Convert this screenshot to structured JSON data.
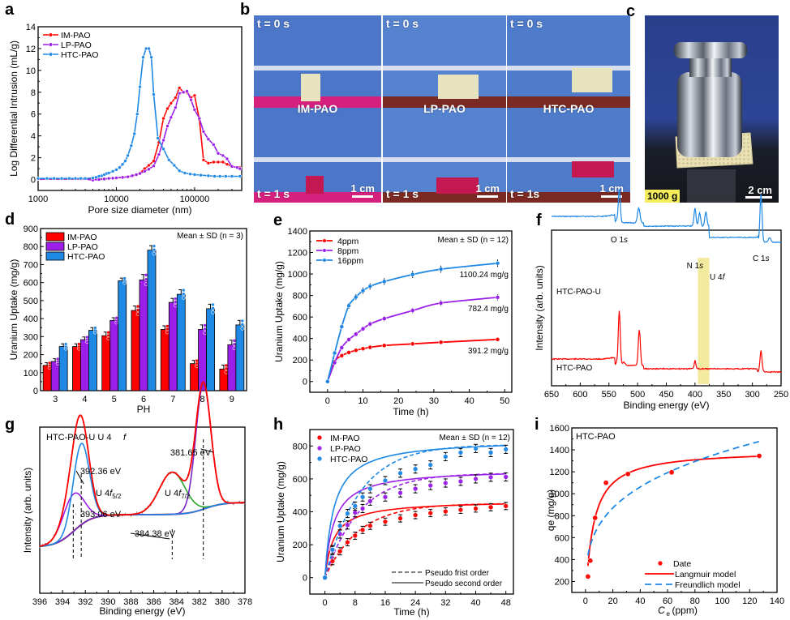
{
  "panels": {
    "a": "a",
    "b": "b",
    "c": "c",
    "d": "d",
    "e": "e",
    "f": "f",
    "g": "g",
    "h": "h",
    "i": "i"
  },
  "colors": {
    "red": "#ff0000",
    "purple": "#9b1fe8",
    "blue": "#1e88e5",
    "green": "#2aa52a",
    "darkred": "#8b1a1a",
    "highlight": "#f3eaa0"
  },
  "photo_b": {
    "columns": [
      {
        "sample": "IM-PAO",
        "t0": "t = 0 s",
        "t1": "t = 1 s",
        "scale": "1 cm"
      },
      {
        "sample": "LP-PAO",
        "t0": "t = 0 s",
        "t1": "t = 1 s",
        "scale": "1 cm"
      },
      {
        "sample": "HTC-PAO",
        "t0": "t = 0 s",
        "t1": "t = 1s",
        "scale": "1 cm"
      }
    ]
  },
  "photo_c": {
    "weight_label": "1000 g",
    "scale": "2 cm"
  },
  "chart_data": [
    {
      "id": "a",
      "type": "line",
      "xscale": "log",
      "xlabel": "Pore size diameter (nm)",
      "ylabel": "Log Differential Intrusion (mL/g)",
      "xlim": [
        1000,
        400000
      ],
      "ylim": [
        -1,
        14
      ],
      "xticks": [
        1000,
        10000,
        100000
      ],
      "xtick_labels": [
        "1000",
        "10000",
        "100000"
      ],
      "yticks": [
        0,
        2,
        4,
        6,
        8,
        10,
        12,
        14
      ],
      "legend": "top-left",
      "series": [
        {
          "name": "IM-PAO",
          "color": "red",
          "x": [
            1000,
            1300,
            1600,
            2000,
            2500,
            3000,
            3500,
            4000,
            5000,
            6000,
            7000,
            8000,
            9000,
            10000,
            12000,
            14000,
            16000,
            18000,
            20000,
            23000,
            26000,
            30000,
            35000,
            40000,
            45000,
            50000,
            57000,
            64000,
            72000,
            80000,
            90000,
            100000,
            115000,
            130000,
            150000,
            175000,
            200000,
            230000,
            260000,
            300000,
            350000,
            380000
          ],
          "y": [
            0.05,
            0.05,
            0.05,
            0.05,
            0.05,
            0.05,
            0.05,
            0.05,
            0.05,
            0.05,
            0.08,
            0.1,
            0.12,
            0.15,
            0.2,
            0.25,
            0.35,
            0.45,
            0.6,
            1.0,
            1.3,
            1.7,
            3.4,
            5.6,
            6.5,
            7.0,
            7.5,
            8.4,
            8.0,
            8.0,
            7.5,
            7.7,
            5.5,
            1.8,
            1.5,
            1.6,
            1.6,
            1.6,
            1.4,
            1.2,
            1.1,
            1.1
          ]
        },
        {
          "name": "LP-PAO",
          "color": "purple",
          "x": [
            1000,
            1300,
            1600,
            2000,
            2500,
            3000,
            3500,
            4000,
            5000,
            6000,
            7000,
            8000,
            9000,
            10000,
            12000,
            14000,
            16000,
            18000,
            20000,
            23000,
            26000,
            30000,
            35000,
            40000,
            45000,
            50000,
            57000,
            64000,
            72000,
            80000,
            90000,
            100000,
            115000,
            130000,
            150000,
            175000,
            200000,
            230000,
            260000,
            300000,
            350000,
            380000
          ],
          "y": [
            0.05,
            0.05,
            0.05,
            0.05,
            0.05,
            0.05,
            0.05,
            0.05,
            -0.05,
            0.0,
            0.05,
            0.1,
            0.12,
            0.15,
            0.2,
            0.25,
            0.35,
            0.45,
            0.55,
            0.75,
            0.95,
            1.25,
            2.3,
            3.6,
            4.9,
            5.7,
            6.6,
            7.9,
            8.0,
            8.1,
            7.3,
            6.4,
            5.6,
            4.4,
            3.7,
            3.2,
            2.4,
            2.2,
            1.9,
            1.2,
            1.1,
            1.0
          ]
        },
        {
          "name": "HTC-PAO",
          "color": "blue",
          "x": [
            1000,
            1300,
            1600,
            2000,
            2500,
            3000,
            3500,
            4000,
            5000,
            5500,
            6000,
            6500,
            7000,
            7500,
            8000,
            9000,
            10000,
            11000,
            12000,
            13000,
            14000,
            15500,
            17000,
            18500,
            20000,
            22000,
            24000,
            26000,
            28000,
            30000,
            34000,
            40000,
            47000,
            55000,
            64000,
            75000,
            88000,
            100000,
            120000,
            150000,
            180000,
            210000,
            250000,
            300000,
            380000
          ],
          "y": [
            0.1,
            0.1,
            0.1,
            0.1,
            0.1,
            0.1,
            0.1,
            0.1,
            0.15,
            0.2,
            0.3,
            0.35,
            0.45,
            0.55,
            0.6,
            0.75,
            0.9,
            1.1,
            1.4,
            1.7,
            2.2,
            3.1,
            4.2,
            6.0,
            8.5,
            11.2,
            12.0,
            12.0,
            11.2,
            7.8,
            3.8,
            2.8,
            1.8,
            1.3,
            0.8,
            0.6,
            0.5,
            0.45,
            0.4,
            0.35,
            0.3,
            0.3,
            0.3,
            0.3,
            0.3
          ]
        }
      ]
    },
    {
      "id": "d",
      "type": "bar",
      "xlabel": "PH",
      "ylabel": "Uranium Uptake (mg/g)",
      "ylim": [
        0,
        900
      ],
      "yticks": [
        0,
        100,
        200,
        300,
        400,
        500,
        600,
        700,
        800,
        900
      ],
      "categories": [
        "3",
        "4",
        "5",
        "6",
        "7",
        "8",
        "9"
      ],
      "annotation": "Mean ± SD (n = 3)",
      "legend": "top-left",
      "series": [
        {
          "name": "IM-PAO",
          "color": "red",
          "values": [
            140,
            245,
            305,
            445,
            340,
            150,
            120
          ],
          "errors": [
            15,
            15,
            20,
            25,
            20,
            18,
            22
          ]
        },
        {
          "name": "LP-PAO",
          "color": "purple",
          "values": [
            162,
            283,
            390,
            615,
            490,
            340,
            255
          ],
          "errors": [
            15,
            15,
            15,
            30,
            22,
            25,
            25
          ]
        },
        {
          "name": "HTC-PAO",
          "color": "blue",
          "values": [
            245,
            335,
            610,
            780,
            535,
            455,
            365
          ],
          "errors": [
            15,
            15,
            15,
            25,
            25,
            25,
            25
          ]
        }
      ]
    },
    {
      "id": "e",
      "type": "line",
      "xlabel": "Time (h)",
      "ylabel": "Uranium Uptake (mg/g)",
      "xlim": [
        -5,
        52
      ],
      "ylim": [
        -100,
        1400
      ],
      "xticks": [
        0,
        10,
        20,
        30,
        40,
        50
      ],
      "yticks": [
        0,
        200,
        400,
        600,
        800,
        1000,
        1200,
        1400
      ],
      "annotation": "Mean ± SD (n = 12)",
      "legend": "top-left",
      "series": [
        {
          "name": "4ppm",
          "color": "red",
          "x": [
            0,
            2,
            4,
            6,
            8,
            10,
            12,
            16,
            24,
            32,
            48
          ],
          "y": [
            0,
            185,
            240,
            270,
            290,
            305,
            318,
            335,
            350,
            365,
            391.2
          ],
          "end_label": "391.2 mg/g"
        },
        {
          "name": "8ppm",
          "color": "purple",
          "x": [
            0,
            2,
            4,
            6,
            8,
            10,
            12,
            16,
            24,
            32,
            48
          ],
          "y": [
            0,
            175,
            315,
            390,
            440,
            490,
            535,
            585,
            660,
            730,
            782.4
          ],
          "end_label": "782.4 mg/g"
        },
        {
          "name": "16ppm",
          "color": "blue",
          "x": [
            0,
            2,
            4,
            6,
            8,
            10,
            12,
            16,
            24,
            32,
            48
          ],
          "y": [
            0,
            265,
            510,
            705,
            785,
            845,
            885,
            930,
            995,
            1045,
            1100.24
          ],
          "end_label": "1100.24 mg/g"
        }
      ]
    },
    {
      "id": "f",
      "type": "line",
      "xlabel": "Binding energy (eV)",
      "ylabel": "Intensity (arb. units)",
      "xlim": [
        650,
        250
      ],
      "xticks": [
        650,
        600,
        550,
        500,
        450,
        400,
        350,
        300,
        250
      ],
      "yticks": [],
      "peak_labels": [
        {
          "text": "O 1",
          "italic": "s",
          "x": 532
        },
        {
          "text": "N 1",
          "italic": "s",
          "x": 400
        },
        {
          "text": "U 4",
          "italic": "f",
          "x": 384
        },
        {
          "text": "C 1",
          "italic": "s",
          "x": 285
        }
      ],
      "highlight_band": [
        395,
        375
      ],
      "series": [
        {
          "name": "HTC-PAO-U",
          "color": "blue"
        },
        {
          "name": "HTC-PAO",
          "color": "red"
        }
      ]
    },
    {
      "id": "g",
      "type": "line",
      "xlabel": "Binding energy (eV)",
      "ylabel": "Intensity (arb. units)",
      "xlim": [
        396,
        378
      ],
      "xticks": [
        396,
        394,
        392,
        390,
        388,
        386,
        384,
        382,
        380,
        378
      ],
      "title": "HTC-PAO-U    U 4f",
      "peak_labels": [
        {
          "text": "381.65 eV",
          "x": 381.65
        },
        {
          "text": "392.36 eV",
          "x": 392.36
        },
        {
          "text": "393.06 eV",
          "x": 393.06
        },
        {
          "text": "384.38 eV",
          "x": 384.38
        }
      ],
      "group_labels": [
        {
          "base": "U 4f",
          "sub": "5/2"
        },
        {
          "base": "U 4f",
          "sub": "7/2"
        }
      ],
      "series": [
        {
          "name": "envelope",
          "color": "red"
        },
        {
          "name": "392.36 eV component",
          "color": "blue",
          "center": 392.36
        },
        {
          "name": "393.06 eV component",
          "color": "purple",
          "center": 393.06
        },
        {
          "name": "384.38 eV component",
          "color": "green",
          "center": 384.38
        },
        {
          "name": "381.65 eV component",
          "color": "purple",
          "center": 381.65
        },
        {
          "name": "background",
          "color": "darkred"
        }
      ]
    },
    {
      "id": "h",
      "type": "scatter",
      "xlabel": "Time (h)",
      "ylabel": "Uranium Uptake (mg/g)",
      "xlim": [
        -4,
        50
      ],
      "ylim": [
        -100,
        900
      ],
      "xticks": [
        0,
        8,
        16,
        24,
        32,
        40,
        48
      ],
      "yticks": [
        0,
        200,
        400,
        600,
        800
      ],
      "annotation": "Mean ± SD (n = 12)",
      "legend": "top-left",
      "fit_legend": [
        "Pseudo frist order",
        "Pseudo second order"
      ],
      "series": [
        {
          "name": "IM-PAO",
          "color": "red",
          "x": [
            0,
            2,
            4,
            6,
            8,
            10,
            12,
            16,
            20,
            24,
            28,
            32,
            36,
            40,
            44,
            48
          ],
          "y": [
            0,
            100,
            160,
            215,
            255,
            290,
            315,
            340,
            360,
            380,
            392,
            402,
            412,
            420,
            428,
            435
          ],
          "err": 22
        },
        {
          "name": "LP-PAO",
          "color": "purple",
          "x": [
            0,
            2,
            4,
            6,
            8,
            10,
            12,
            16,
            20,
            24,
            28,
            32,
            36,
            40,
            44,
            48
          ],
          "y": [
            0,
            165,
            265,
            320,
            395,
            420,
            465,
            490,
            515,
            540,
            560,
            575,
            585,
            600,
            610,
            612
          ],
          "err": 25
        },
        {
          "name": "HTC-PAO",
          "color": "blue",
          "x": [
            0,
            2,
            4,
            6,
            8,
            10,
            12,
            16,
            20,
            24,
            28,
            32,
            36,
            40,
            44,
            48
          ],
          "y": [
            0,
            170,
            315,
            390,
            435,
            490,
            540,
            590,
            635,
            660,
            685,
            735,
            760,
            785,
            760,
            780
          ],
          "err": 25
        }
      ]
    },
    {
      "id": "i",
      "type": "scatter",
      "xlabel": "Ce (ppm)",
      "ylabel": "qe (mg/g)",
      "xlim": [
        -10,
        140
      ],
      "ylim": [
        100,
        1600
      ],
      "xticks": [
        0,
        20,
        40,
        60,
        80,
        100,
        120,
        140
      ],
      "yticks": [
        200,
        400,
        600,
        800,
        1000,
        1200,
        1400,
        1600
      ],
      "title": "HTC-PAO",
      "legend": "bottom-right",
      "legend_items": [
        "Date",
        "Langmuir model",
        "Freundlich model"
      ],
      "points": {
        "x": [
          1.8,
          3.5,
          7.0,
          15.0,
          31.0,
          63.0,
          127.0
        ],
        "y": [
          245,
          390,
          780,
          1100,
          1180,
          1195,
          1345
        ]
      },
      "langmuir": {
        "qmax": 1400,
        "KL": 0.18
      },
      "freundlich": {
        "KF": 370,
        "n": 3.5
      }
    }
  ]
}
